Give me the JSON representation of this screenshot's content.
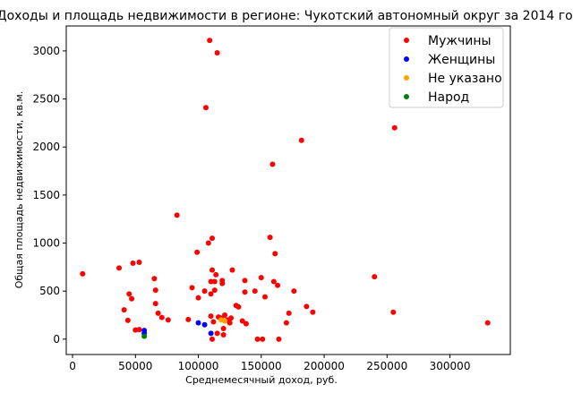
{
  "chart_data": {
    "type": "scatter",
    "title": "Доходы и площадь недвижимости в регионе: Чукотский автономный округ за 2014 год",
    "xlabel": "Среднемесячный доход, руб.",
    "ylabel": "Общая площадь недвижимости, кв.м.",
    "xlim": [
      -5000,
      348000
    ],
    "ylim": [
      -160,
      3260
    ],
    "xticks": [
      0,
      50000,
      100000,
      150000,
      200000,
      250000,
      300000
    ],
    "xtick_labels": [
      "0",
      "50000",
      "100000",
      "150000",
      "200000",
      "250000",
      "300000"
    ],
    "yticks": [
      0,
      500,
      1000,
      1500,
      2000,
      2500,
      3000
    ],
    "ytick_labels": [
      "0",
      "500",
      "1000",
      "1500",
      "2000",
      "2500",
      "3000"
    ],
    "grid": false,
    "legend_position": "top-right",
    "series": [
      {
        "name": "Мужчины",
        "color": "#ff0000",
        "points": [
          [
            8000,
            680
          ],
          [
            37000,
            740
          ],
          [
            41000,
            305
          ],
          [
            44000,
            195
          ],
          [
            45000,
            470
          ],
          [
            47000,
            420
          ],
          [
            48000,
            790
          ],
          [
            50000,
            95
          ],
          [
            53000,
            800
          ],
          [
            53000,
            100
          ],
          [
            65000,
            630
          ],
          [
            66000,
            510
          ],
          [
            66000,
            370
          ],
          [
            68000,
            270
          ],
          [
            71000,
            225
          ],
          [
            76000,
            200
          ],
          [
            83000,
            1290
          ],
          [
            92000,
            205
          ],
          [
            95000,
            535
          ],
          [
            99000,
            905
          ],
          [
            100000,
            430
          ],
          [
            105000,
            500
          ],
          [
            106000,
            2410
          ],
          [
            108000,
            1000
          ],
          [
            109000,
            3110
          ],
          [
            110000,
            470
          ],
          [
            110000,
            240
          ],
          [
            110000,
            600
          ],
          [
            111000,
            1050
          ],
          [
            111000,
            720
          ],
          [
            111000,
            0
          ],
          [
            112000,
            180
          ],
          [
            113000,
            600
          ],
          [
            113000,
            510
          ],
          [
            114000,
            670
          ],
          [
            115000,
            2980
          ],
          [
            115000,
            60
          ],
          [
            116000,
            230
          ],
          [
            118000,
            220
          ],
          [
            119000,
            610
          ],
          [
            119000,
            580
          ],
          [
            120000,
            110
          ],
          [
            120000,
            45
          ],
          [
            121000,
            250
          ],
          [
            123000,
            200
          ],
          [
            125000,
            170
          ],
          [
            126000,
            220
          ],
          [
            127000,
            720
          ],
          [
            130000,
            350
          ],
          [
            132000,
            335
          ],
          [
            135000,
            190
          ],
          [
            137000,
            490
          ],
          [
            137000,
            610
          ],
          [
            138000,
            160
          ],
          [
            145000,
            500
          ],
          [
            147000,
            0
          ],
          [
            150000,
            640
          ],
          [
            151000,
            0
          ],
          [
            153000,
            440
          ],
          [
            157000,
            1060
          ],
          [
            159000,
            1820
          ],
          [
            160000,
            600
          ],
          [
            161000,
            890
          ],
          [
            163000,
            560
          ],
          [
            164000,
            0
          ],
          [
            170000,
            170
          ],
          [
            172000,
            270
          ],
          [
            176000,
            500
          ],
          [
            182000,
            2070
          ],
          [
            186000,
            340
          ],
          [
            191000,
            280
          ],
          [
            240000,
            650
          ],
          [
            255000,
            280
          ],
          [
            256000,
            2200
          ],
          [
            330000,
            170
          ]
        ]
      },
      {
        "name": "Женщины",
        "color": "#0000ff",
        "points": [
          [
            57000,
            90
          ],
          [
            57000,
            60
          ],
          [
            100000,
            170
          ],
          [
            105000,
            150
          ],
          [
            110000,
            60
          ]
        ]
      },
      {
        "name": "Не указано",
        "color": "#ffa500",
        "points": [
          [
            118000,
            200
          ],
          [
            121000,
            190
          ]
        ]
      },
      {
        "name": "Народ",
        "color": "#008000",
        "points": [
          [
            57000,
            30
          ]
        ]
      }
    ]
  }
}
